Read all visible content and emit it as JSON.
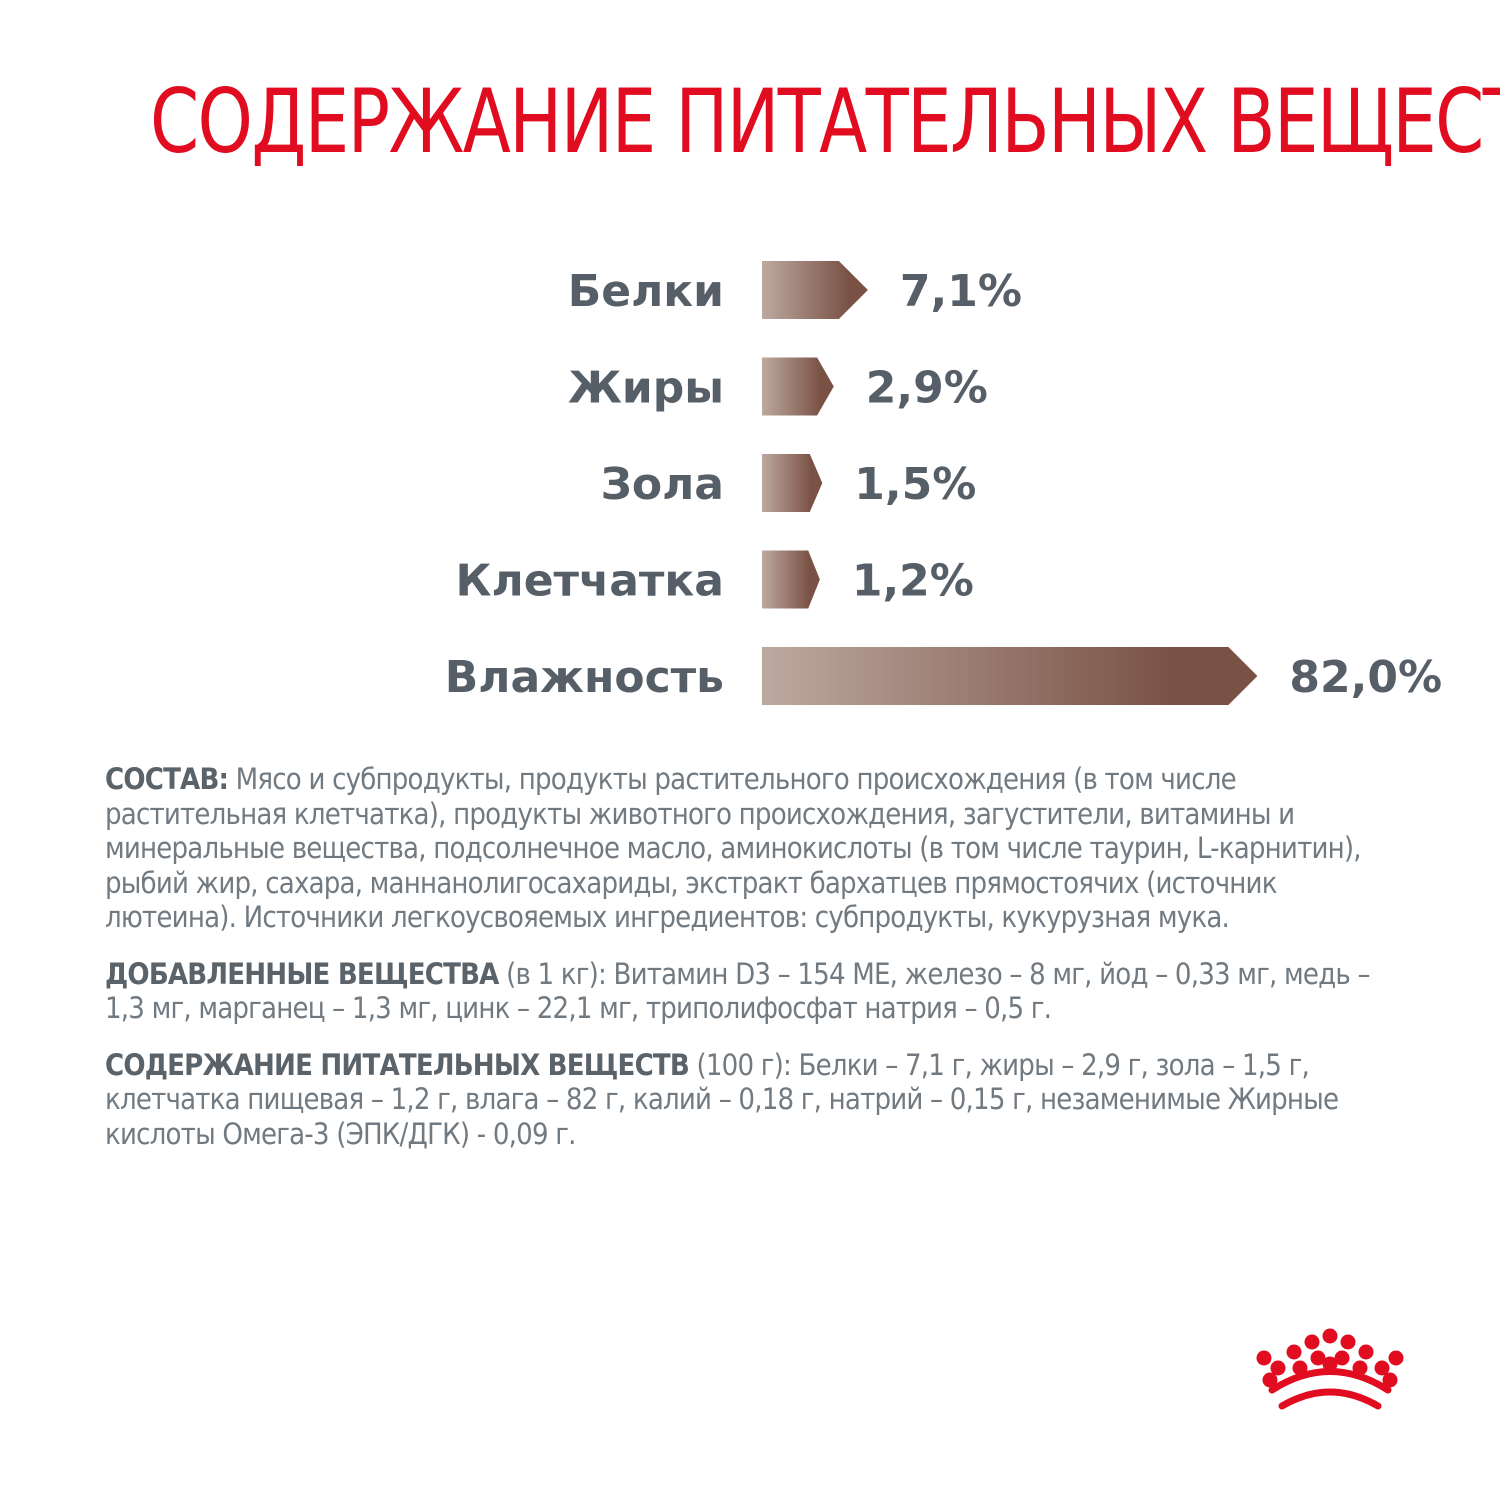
{
  "title": "СОДЕРЖАНИЕ ПИТАТЕЛЬНЫХ ВЕЩЕСТВ",
  "colors": {
    "title": "#e10c1f",
    "label": "#565f68",
    "bar_start": "#bda9a1",
    "bar_end": "#7a5245",
    "body_text": "#727a81",
    "logo": "#e10c1f"
  },
  "chart_data": {
    "type": "bar",
    "orientation": "horizontal",
    "categories": [
      "Белки",
      "Жиры",
      "Зола",
      "Клетчатка",
      "Влажность"
    ],
    "values": [
      7.1,
      2.9,
      1.5,
      1.2,
      82.0
    ],
    "value_labels": [
      "7,1%",
      "2,9%",
      "1,5%",
      "1,2%",
      "82,0%"
    ],
    "unit": "%",
    "grid": false,
    "legend": "none"
  },
  "composition": {
    "label": "СОСТАВ:",
    "text": " Мясо и субпродукты, продукты растительного происхождения (в том числе растительная клетчатка), продукты животного происхождения, загустители, витамины и минеральные вещества, подсолнечное масло, аминокислоты (в том числе таурин, L-карнитин), рыбий жир, сахара, маннанолигосахариды, экстракт бархатцев прямостоячих (источник лютеина). Источники легкоусвояемых ингредиентов: субпродукты, кукурузная мука."
  },
  "additives": {
    "label": "ДОБАВЛЕННЫЕ ВЕЩЕСТВА",
    "text": " (в 1 кг): Витамин D3 – 154 МЕ, железо – 8 мг, йод – 0,33 мг, медь – 1,3 мг, марганец – 1,3 мг, цинк – 22,1 мг, триполифосфат натрия – 0,5 г."
  },
  "nutrients": {
    "label": "СОДЕРЖАНИЕ ПИТАТЕЛЬНЫХ ВЕЩЕСТВ",
    "text": " (100 г): Белки – 7,1 г, жиры – 2,9 г, зола – 1,5 г, клетчатка пищевая – 1,2 г, влага – 82 г, калий – 0,18 г, натрий – 0,15 г, незаменимые Жирные кислоты Омега-3 (ЭПК/ДГК) - 0,09 г."
  },
  "logo": {
    "icon": "crown-logo-icon"
  }
}
